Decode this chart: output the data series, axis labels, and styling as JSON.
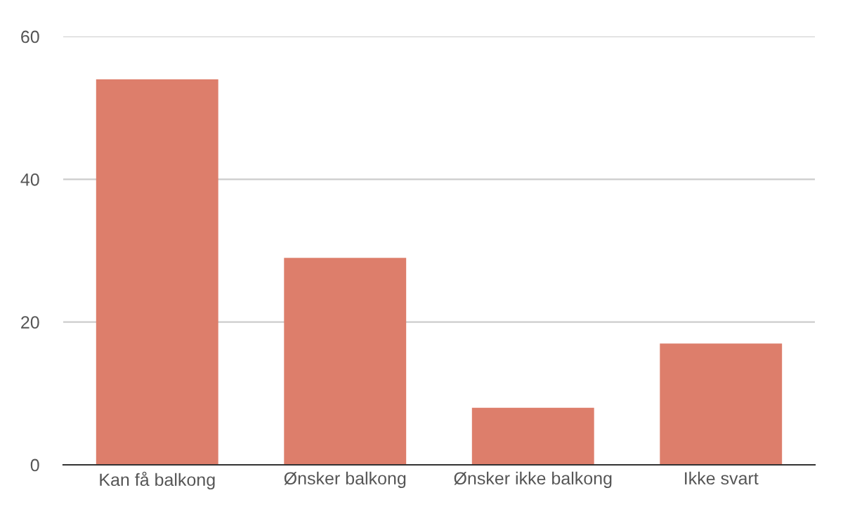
{
  "chart_data": {
    "type": "bar",
    "categories": [
      "Kan få balkong",
      "Ønsker balkong",
      "Ønsker ikke balkong",
      "Ikke svart"
    ],
    "values": [
      54,
      29,
      8,
      17
    ],
    "color": "#dd7e6b",
    "ylim": [
      0,
      60
    ],
    "yticks": [
      0,
      20,
      40,
      60
    ],
    "grid": "y"
  }
}
